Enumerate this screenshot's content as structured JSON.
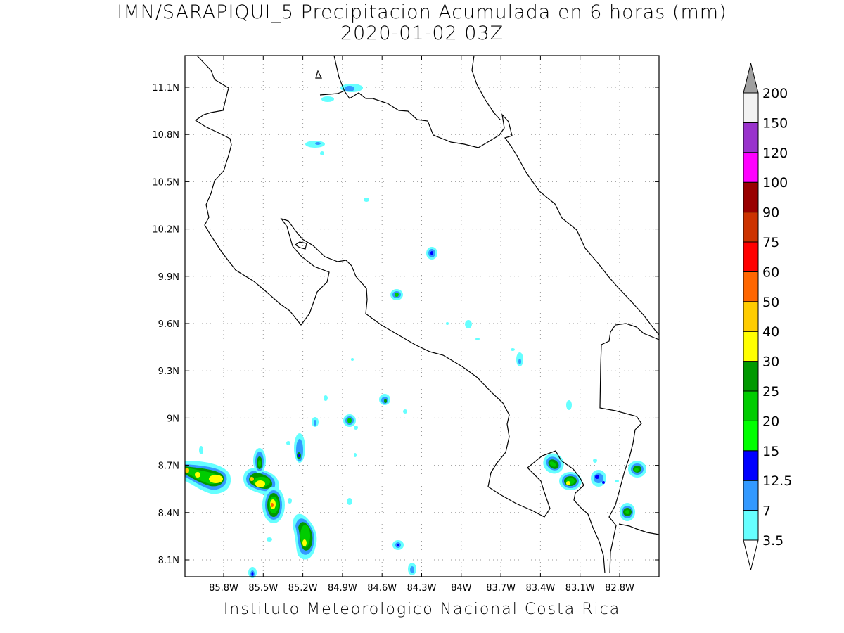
{
  "title": {
    "line1": "IMN/SARAPIQUI_5 Precipitacion Acumulada en 6 horas (mm)",
    "line2": "2020-01-02 03Z"
  },
  "credit": "Instituto Meteorologico Nacional Costa Rica",
  "map": {
    "lon_range": [
      -86.05,
      -83.05
    ],
    "lat_range": [
      8.0,
      11.25
    ],
    "lon_ticks": [
      "85.8W",
      "85.5W",
      "85.2W",
      "84.9W",
      "84.6W",
      "84.3W",
      "84W",
      "83.7W",
      "83.4W",
      "83.1W",
      "82.8W"
    ],
    "lat_ticks": [
      "11.1N",
      "10.8N",
      "10.5N",
      "10.2N",
      "9.9N",
      "9.6N",
      "9.3N",
      "9N",
      "8.7N",
      "8.4N",
      "8.1N"
    ],
    "grid": true
  },
  "legend": {
    "levels": [
      "3.5",
      "7",
      "12.5",
      "15",
      "20",
      "25",
      "30",
      "40",
      "50",
      "60",
      "75",
      "90",
      "100",
      "120",
      "150",
      "200"
    ],
    "colors": [
      "#66ffff",
      "#3399ff",
      "#0000ff",
      "#00ff00",
      "#00cc00",
      "#009900",
      "#ffff00",
      "#ffcc00",
      "#ff6600",
      "#ff0000",
      "#cc3300",
      "#990000",
      "#ff00ff",
      "#9933cc",
      "#f2f2f2"
    ],
    "top_arrow_color": "#a0a0a0",
    "bottom_arrow_color": "#ffffff"
  }
}
